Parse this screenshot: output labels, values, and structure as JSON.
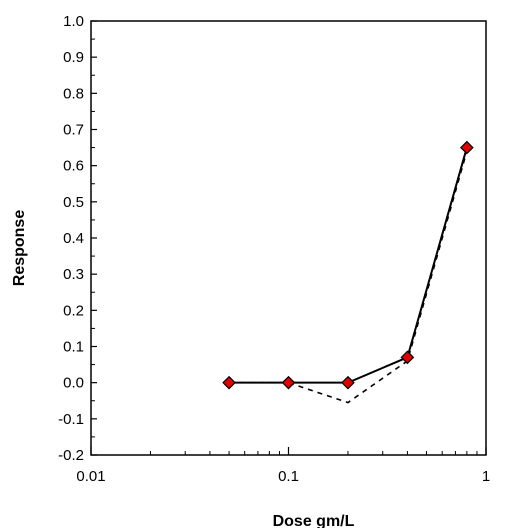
{
  "chart_data": {
    "type": "line",
    "title": "",
    "xlabel": "Dose gm/L",
    "ylabel": "Response",
    "x_scale": "log",
    "xlim": [
      0.01,
      1
    ],
    "ylim": [
      -0.2,
      1.0
    ],
    "x_ticks": [
      "0.01",
      "0.1",
      "1"
    ],
    "y_ticks": [
      "-0.2",
      "-0.1",
      "0.0",
      "0.1",
      "0.2",
      "0.3",
      "0.4",
      "0.5",
      "0.6",
      "0.7",
      "0.8",
      "0.9",
      "1.0"
    ],
    "y_tick_values": [
      -0.2,
      -0.1,
      0.0,
      0.1,
      0.2,
      0.3,
      0.4,
      0.5,
      0.6,
      0.7,
      0.8,
      0.9,
      1.0
    ],
    "x_tick_values": [
      0.01,
      0.1,
      1
    ],
    "grid": false,
    "legend": "none",
    "series": [
      {
        "style": "solid",
        "color": "#000000",
        "marker": "diamond",
        "marker_color": "#e00000",
        "x": [
          0.05,
          0.1,
          0.2,
          0.4,
          0.8
        ],
        "y": [
          0.0,
          0.0,
          0.0,
          0.07,
          0.65
        ]
      },
      {
        "style": "dashed",
        "color": "#000000",
        "marker": "none",
        "x": [
          0.05,
          0.1,
          0.2,
          0.4,
          0.8
        ],
        "y": [
          0.0,
          0.0,
          -0.055,
          0.06,
          0.64
        ]
      }
    ]
  }
}
